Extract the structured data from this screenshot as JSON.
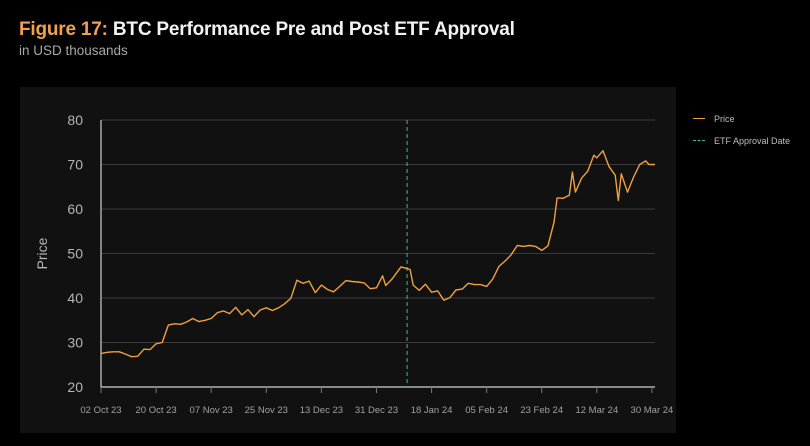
{
  "title": {
    "prefix": "Figure 17:",
    "text": " BTC Performance Pre and Post ETF Approval"
  },
  "subtitle": "in USD thousands",
  "colors": {
    "price": "#f0a040",
    "etf": "#3fb89c",
    "grid": "#3a3a3a",
    "axis": "#cfcfcf",
    "panel": "#111111"
  },
  "chart_data": {
    "type": "line",
    "ylabel": "Price",
    "ylim": [
      20,
      80
    ],
    "yticks": [
      "20",
      "30",
      "40",
      "50",
      "60",
      "70",
      "80"
    ],
    "xlim": [
      "2023-10-02",
      "2024-03-31"
    ],
    "xticks": [
      {
        "date": "2023-10-02",
        "label": "02 Oct 23"
      },
      {
        "date": "2023-10-20",
        "label": "20 Oct 23"
      },
      {
        "date": "2023-11-07",
        "label": "07 Nov 23"
      },
      {
        "date": "2023-11-25",
        "label": "25 Nov 23"
      },
      {
        "date": "2023-12-13",
        "label": "13 Dec 23"
      },
      {
        "date": "2023-12-31",
        "label": "31 Dec 23"
      },
      {
        "date": "2024-01-18",
        "label": "18 Jan 24"
      },
      {
        "date": "2024-02-05",
        "label": "05 Feb 24"
      },
      {
        "date": "2024-02-23",
        "label": "23 Feb 24"
      },
      {
        "date": "2024-03-12",
        "label": "12 Mar 24"
      },
      {
        "date": "2024-03-30",
        "label": "30 Mar 24"
      }
    ],
    "grid": true,
    "legend": {
      "placement": "right",
      "entries": [
        "Price",
        "ETF Approval Date"
      ]
    },
    "etf_approval_date": "2024-01-10",
    "series": [
      {
        "name": "Price",
        "points": [
          [
            "2023-10-02",
            27.5
          ],
          [
            "2023-10-04",
            27.8
          ],
          [
            "2023-10-06",
            27.9
          ],
          [
            "2023-10-08",
            27.9
          ],
          [
            "2023-10-10",
            27.4
          ],
          [
            "2023-10-12",
            26.8
          ],
          [
            "2023-10-14",
            26.9
          ],
          [
            "2023-10-16",
            28.5
          ],
          [
            "2023-10-18",
            28.4
          ],
          [
            "2023-10-20",
            29.7
          ],
          [
            "2023-10-22",
            30.0
          ],
          [
            "2023-10-24",
            33.9
          ],
          [
            "2023-10-26",
            34.2
          ],
          [
            "2023-10-28",
            34.1
          ],
          [
            "2023-10-30",
            34.6
          ],
          [
            "2023-11-01",
            35.4
          ],
          [
            "2023-11-03",
            34.7
          ],
          [
            "2023-11-05",
            35.0
          ],
          [
            "2023-11-07",
            35.4
          ],
          [
            "2023-11-09",
            36.7
          ],
          [
            "2023-11-11",
            37.1
          ],
          [
            "2023-11-13",
            36.5
          ],
          [
            "2023-11-15",
            37.9
          ],
          [
            "2023-11-17",
            36.2
          ],
          [
            "2023-11-19",
            37.4
          ],
          [
            "2023-11-21",
            35.8
          ],
          [
            "2023-11-23",
            37.3
          ],
          [
            "2023-11-25",
            37.8
          ],
          [
            "2023-11-27",
            37.2
          ],
          [
            "2023-11-29",
            37.8
          ],
          [
            "2023-12-01",
            38.7
          ],
          [
            "2023-12-03",
            39.9
          ],
          [
            "2023-12-05",
            44.0
          ],
          [
            "2023-12-07",
            43.3
          ],
          [
            "2023-12-09",
            43.8
          ],
          [
            "2023-12-11",
            41.2
          ],
          [
            "2023-12-13",
            42.9
          ],
          [
            "2023-12-15",
            41.9
          ],
          [
            "2023-12-17",
            41.4
          ],
          [
            "2023-12-19",
            42.6
          ],
          [
            "2023-12-21",
            43.9
          ],
          [
            "2023-12-23",
            43.7
          ],
          [
            "2023-12-25",
            43.6
          ],
          [
            "2023-12-27",
            43.4
          ],
          [
            "2023-12-29",
            42.1
          ],
          [
            "2023-12-31",
            42.3
          ],
          [
            "2024-01-02",
            45.0
          ],
          [
            "2024-01-03",
            42.8
          ],
          [
            "2024-01-05",
            44.2
          ],
          [
            "2024-01-08",
            47.0
          ],
          [
            "2024-01-10",
            46.6
          ],
          [
            "2024-01-11",
            46.4
          ],
          [
            "2024-01-12",
            42.9
          ],
          [
            "2024-01-14",
            41.7
          ],
          [
            "2024-01-16",
            43.1
          ],
          [
            "2024-01-18",
            41.3
          ],
          [
            "2024-01-20",
            41.6
          ],
          [
            "2024-01-22",
            39.5
          ],
          [
            "2024-01-24",
            40.1
          ],
          [
            "2024-01-26",
            41.8
          ],
          [
            "2024-01-28",
            42.0
          ],
          [
            "2024-01-30",
            43.3
          ],
          [
            "2024-02-01",
            43.0
          ],
          [
            "2024-02-03",
            43.0
          ],
          [
            "2024-02-05",
            42.6
          ],
          [
            "2024-02-07",
            44.3
          ],
          [
            "2024-02-09",
            47.1
          ],
          [
            "2024-02-11",
            48.3
          ],
          [
            "2024-02-13",
            49.7
          ],
          [
            "2024-02-15",
            51.8
          ],
          [
            "2024-02-17",
            51.6
          ],
          [
            "2024-02-19",
            51.8
          ],
          [
            "2024-02-21",
            51.6
          ],
          [
            "2024-02-23",
            50.7
          ],
          [
            "2024-02-25",
            51.7
          ],
          [
            "2024-02-27",
            57.0
          ],
          [
            "2024-02-28",
            62.5
          ],
          [
            "2024-03-01",
            62.4
          ],
          [
            "2024-03-03",
            63.1
          ],
          [
            "2024-03-04",
            68.3
          ],
          [
            "2024-03-05",
            63.8
          ],
          [
            "2024-03-07",
            66.9
          ],
          [
            "2024-03-09",
            68.5
          ],
          [
            "2024-03-11",
            72.1
          ],
          [
            "2024-03-12",
            71.5
          ],
          [
            "2024-03-14",
            73.1
          ],
          [
            "2024-03-16",
            69.5
          ],
          [
            "2024-03-18",
            67.6
          ],
          [
            "2024-03-19",
            61.9
          ],
          [
            "2024-03-20",
            67.9
          ],
          [
            "2024-03-22",
            63.8
          ],
          [
            "2024-03-24",
            67.2
          ],
          [
            "2024-03-26",
            70.0
          ],
          [
            "2024-03-28",
            70.8
          ],
          [
            "2024-03-29",
            70.0
          ],
          [
            "2024-03-31",
            70.0
          ]
        ]
      }
    ]
  }
}
